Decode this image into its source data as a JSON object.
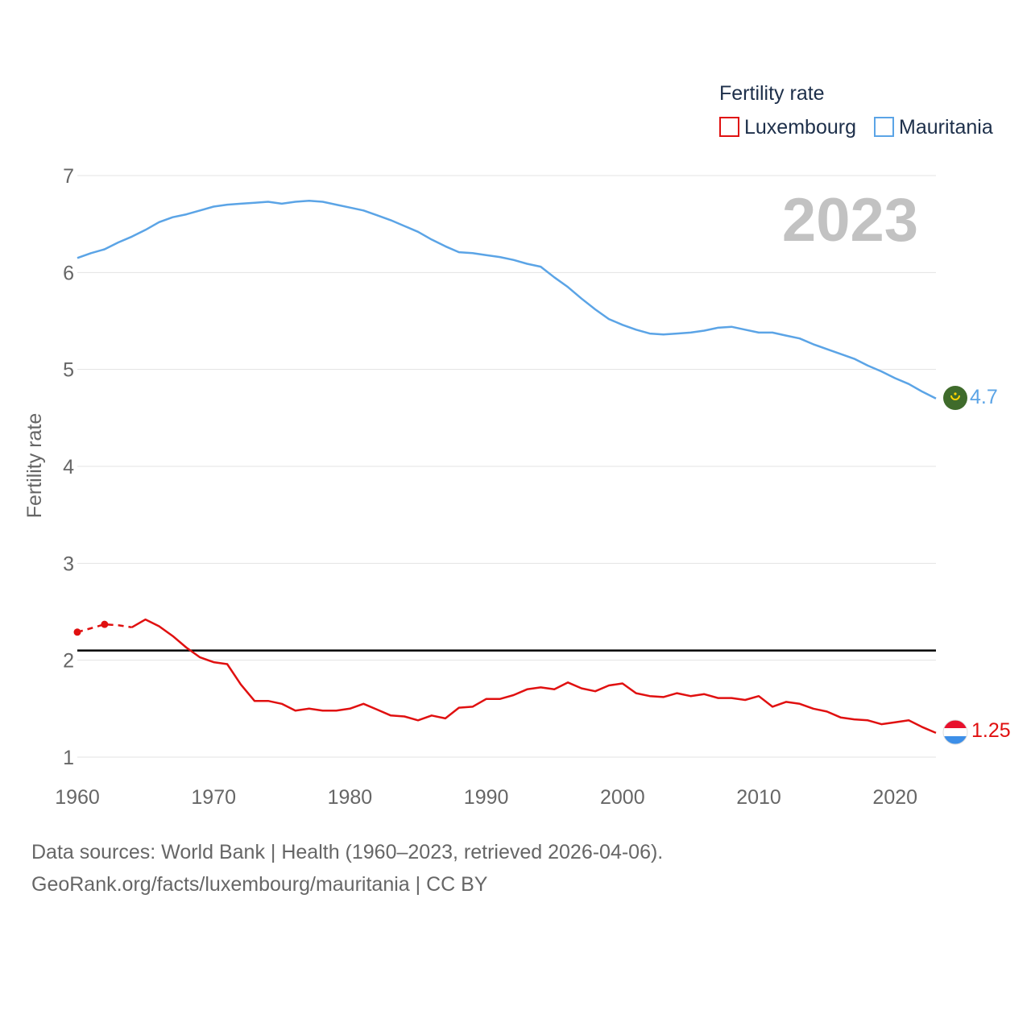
{
  "chart_data": {
    "type": "line",
    "title": "",
    "ylabel": "Fertility rate",
    "xlabel": "",
    "xlim": [
      1960,
      2023
    ],
    "ylim": [
      1,
      7
    ],
    "x_ticks": [
      1960,
      1970,
      1980,
      1990,
      2000,
      2010,
      2020
    ],
    "y_ticks": [
      1,
      2,
      3,
      4,
      5,
      6,
      7
    ],
    "year_label": "2023",
    "legend": {
      "title": "Fertility rate",
      "position": "top-right"
    },
    "reference_line": {
      "value": 2.1,
      "color": "#000000"
    },
    "x": [
      1960,
      1961,
      1962,
      1963,
      1964,
      1965,
      1966,
      1967,
      1968,
      1969,
      1970,
      1971,
      1972,
      1973,
      1974,
      1975,
      1976,
      1977,
      1978,
      1979,
      1980,
      1981,
      1982,
      1983,
      1984,
      1985,
      1986,
      1987,
      1988,
      1989,
      1990,
      1991,
      1992,
      1993,
      1994,
      1995,
      1996,
      1997,
      1998,
      1999,
      2000,
      2001,
      2002,
      2003,
      2004,
      2005,
      2006,
      2007,
      2008,
      2009,
      2010,
      2011,
      2012,
      2013,
      2014,
      2015,
      2016,
      2017,
      2018,
      2019,
      2020,
      2021,
      2022,
      2023
    ],
    "series": [
      {
        "name": "Luxembourg",
        "color": "#e01010",
        "end_label": "1.25",
        "flag": "luxembourg-flag",
        "dashed_until": 1964,
        "markers": [
          1960,
          1962
        ],
        "values": [
          2.29,
          2.33,
          2.37,
          2.36,
          2.34,
          2.42,
          2.35,
          2.25,
          2.13,
          2.03,
          1.98,
          1.96,
          1.75,
          1.58,
          1.58,
          1.55,
          1.48,
          1.5,
          1.48,
          1.48,
          1.5,
          1.55,
          1.49,
          1.43,
          1.42,
          1.38,
          1.43,
          1.4,
          1.51,
          1.52,
          1.6,
          1.6,
          1.64,
          1.7,
          1.72,
          1.7,
          1.77,
          1.71,
          1.68,
          1.74,
          1.76,
          1.66,
          1.63,
          1.62,
          1.66,
          1.63,
          1.65,
          1.61,
          1.61,
          1.59,
          1.63,
          1.52,
          1.57,
          1.55,
          1.5,
          1.47,
          1.41,
          1.39,
          1.38,
          1.34,
          1.36,
          1.38,
          1.31,
          1.25
        ]
      },
      {
        "name": "Mauritania",
        "color": "#5ba4e6",
        "end_label": "4.7",
        "flag": "mauritania-flag",
        "values": [
          6.15,
          6.2,
          6.24,
          6.31,
          6.37,
          6.44,
          6.52,
          6.57,
          6.6,
          6.64,
          6.68,
          6.7,
          6.71,
          6.72,
          6.73,
          6.71,
          6.73,
          6.74,
          6.73,
          6.7,
          6.67,
          6.64,
          6.59,
          6.54,
          6.48,
          6.42,
          6.34,
          6.27,
          6.21,
          6.2,
          6.18,
          6.16,
          6.13,
          6.09,
          6.06,
          5.95,
          5.85,
          5.73,
          5.62,
          5.52,
          5.46,
          5.41,
          5.37,
          5.36,
          5.37,
          5.38,
          5.4,
          5.43,
          5.44,
          5.41,
          5.38,
          5.38,
          5.35,
          5.32,
          5.26,
          5.21,
          5.16,
          5.11,
          5.04,
          4.98,
          4.91,
          4.85,
          4.77,
          4.7
        ]
      }
    ]
  },
  "footer": {
    "sources": "Data sources: World Bank | Health (1960–2023, retrieved 2026-04-06).",
    "link": "GeoRank.org/facts/luxembourg/mauritania | CC BY"
  }
}
